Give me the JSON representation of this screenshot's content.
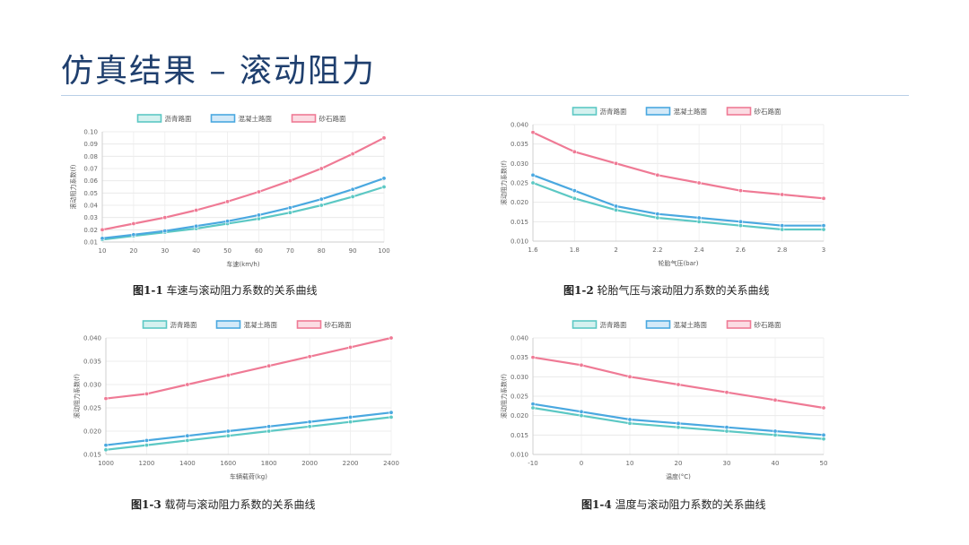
{
  "slide": {
    "title": "仿真结果 – 滚动阻力"
  },
  "legend": [
    "沥青路面",
    "混凝土路面",
    "砂石路面"
  ],
  "colors": {
    "asphalt": "#5cc8c4",
    "concrete": "#4aa8e0",
    "gravel": "#ef7a95",
    "title": "#1f3f6e"
  },
  "captions": [
    {
      "num": "图1-1",
      "text": " 车速与滚动阻力系数的关系曲线"
    },
    {
      "num": "图1-2",
      "text": " 轮胎气压与滚动阻力系数的关系曲线"
    },
    {
      "num": "图1-3",
      "text": " 载荷与滚动阻力系数的关系曲线"
    },
    {
      "num": "图1-4",
      "text": " 温度与滚动阻力系数的关系曲线"
    }
  ],
  "chart_data": [
    {
      "type": "line",
      "xlabel": "车速(km/h)",
      "ylabel": "滚动阻力系数(f)",
      "x": [
        10,
        20,
        30,
        40,
        50,
        60,
        70,
        80,
        90,
        100
      ],
      "xticks": [
        "10",
        "20",
        "30",
        "40",
        "50",
        "60",
        "70",
        "80",
        "90",
        "100"
      ],
      "xlim": [
        10,
        100
      ],
      "ylim": [
        0.01,
        0.1
      ],
      "yticks": [
        "0.01",
        "0.02",
        "0.03",
        "0.04",
        "0.05",
        "0.06",
        "0.07",
        "0.08",
        "0.09",
        "0.10"
      ],
      "ytick_values": [
        0.01,
        0.02,
        0.03,
        0.04,
        0.05,
        0.06,
        0.07,
        0.08,
        0.09,
        0.1
      ],
      "series": [
        {
          "name": "沥青路面",
          "values": [
            0.012,
            0.015,
            0.018,
            0.021,
            0.025,
            0.029,
            0.034,
            0.04,
            0.047,
            0.055
          ]
        },
        {
          "name": "混凝土路面",
          "values": [
            0.013,
            0.016,
            0.019,
            0.023,
            0.027,
            0.032,
            0.038,
            0.045,
            0.053,
            0.062
          ]
        },
        {
          "name": "砂石路面",
          "values": [
            0.02,
            0.025,
            0.03,
            0.036,
            0.043,
            0.051,
            0.06,
            0.07,
            0.082,
            0.095
          ]
        }
      ]
    },
    {
      "type": "line",
      "xlabel": "轮胎气压(bar)",
      "ylabel": "滚动阻力系数(f)",
      "x": [
        1.6,
        1.8,
        2.0,
        2.2,
        2.4,
        2.6,
        2.8,
        3.0
      ],
      "xticks": [
        "1.6",
        "1.8",
        "2",
        "2.2",
        "2.4",
        "2.6",
        "2.8",
        "3"
      ],
      "xlim": [
        1.6,
        3.0
      ],
      "ylim": [
        0.01,
        0.04
      ],
      "yticks": [
        "0.010",
        "0.015",
        "0.020",
        "0.025",
        "0.030",
        "0.035",
        "0.040"
      ],
      "ytick_values": [
        0.01,
        0.015,
        0.02,
        0.025,
        0.03,
        0.035,
        0.04
      ],
      "series": [
        {
          "name": "沥青路面",
          "values": [
            0.025,
            0.021,
            0.018,
            0.016,
            0.015,
            0.014,
            0.013,
            0.013
          ]
        },
        {
          "name": "混凝土路面",
          "values": [
            0.027,
            0.023,
            0.019,
            0.017,
            0.016,
            0.015,
            0.014,
            0.014
          ]
        },
        {
          "name": "砂石路面",
          "values": [
            0.038,
            0.033,
            0.03,
            0.027,
            0.025,
            0.023,
            0.022,
            0.021
          ]
        }
      ]
    },
    {
      "type": "line",
      "xlabel": "车辆载荷(kg)",
      "ylabel": "滚动阻力系数(f)",
      "x": [
        1000,
        1200,
        1400,
        1600,
        1800,
        2000,
        2200,
        2400
      ],
      "xticks": [
        "1000",
        "1200",
        "1400",
        "1600",
        "1800",
        "2000",
        "2200",
        "2400"
      ],
      "xlim": [
        1000,
        2400
      ],
      "ylim": [
        0.015,
        0.04
      ],
      "yticks": [
        "0.015",
        "0.020",
        "0.025",
        "0.030",
        "0.035",
        "0.040"
      ],
      "ytick_values": [
        0.015,
        0.02,
        0.025,
        0.03,
        0.035,
        0.04
      ],
      "series": [
        {
          "name": "沥青路面",
          "values": [
            0.016,
            0.017,
            0.018,
            0.019,
            0.02,
            0.021,
            0.022,
            0.023
          ]
        },
        {
          "name": "混凝土路面",
          "values": [
            0.017,
            0.018,
            0.019,
            0.02,
            0.021,
            0.022,
            0.023,
            0.024
          ]
        },
        {
          "name": "砂石路面",
          "values": [
            0.027,
            0.028,
            0.03,
            0.032,
            0.034,
            0.036,
            0.038,
            0.04
          ]
        }
      ]
    },
    {
      "type": "line",
      "xlabel": "温度(°C)",
      "ylabel": "滚动阻力系数(f)",
      "x": [
        -10,
        0,
        10,
        20,
        30,
        40,
        50
      ],
      "xticks": [
        "-10",
        "0",
        "10",
        "20",
        "30",
        "40",
        "50"
      ],
      "xlim": [
        -10,
        50
      ],
      "ylim": [
        0.01,
        0.04
      ],
      "yticks": [
        "0.010",
        "0.015",
        "0.020",
        "0.025",
        "0.030",
        "0.035",
        "0.040"
      ],
      "ytick_values": [
        0.01,
        0.015,
        0.02,
        0.025,
        0.03,
        0.035,
        0.04
      ],
      "series": [
        {
          "name": "沥青路面",
          "values": [
            0.022,
            0.02,
            0.018,
            0.017,
            0.016,
            0.015,
            0.014
          ]
        },
        {
          "name": "混凝土路面",
          "values": [
            0.023,
            0.021,
            0.019,
            0.018,
            0.017,
            0.016,
            0.015
          ]
        },
        {
          "name": "砂石路面",
          "values": [
            0.035,
            0.033,
            0.03,
            0.028,
            0.026,
            0.024,
            0.022
          ]
        }
      ]
    }
  ]
}
